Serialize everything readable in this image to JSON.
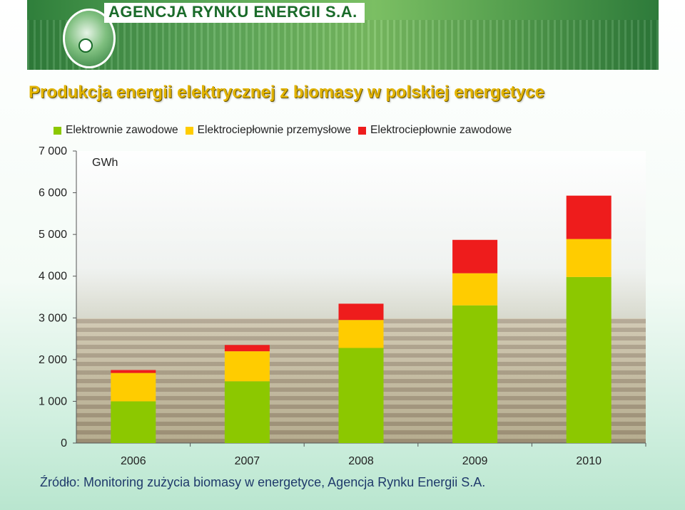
{
  "header": {
    "brand": "AGENCJA RYNKU ENERGII S.A."
  },
  "slide": {
    "title": "Produkcja energii elektrycznej z biomasy w polskiej energetyce",
    "source": "Źródło: Monitoring zużycia biomasy w energetyce, Agencja Rynku Energii S.A."
  },
  "chart_data": {
    "type": "bar",
    "stacked": true,
    "unit_label": "GWh",
    "categories": [
      "2006",
      "2007",
      "2008",
      "2009",
      "2010"
    ],
    "series": [
      {
        "name": "Elektrownie zawodowe",
        "color": "#8cc800",
        "values": [
          1000,
          1480,
          2280,
          3300,
          3980
        ]
      },
      {
        "name": "Elektrociepłownie przemysłowe",
        "color": "#ffcc00",
        "values": [
          680,
          720,
          670,
          770,
          910
        ]
      },
      {
        "name": "Elektrociepłownie zawodowe",
        "color": "#ee1c1c",
        "values": [
          70,
          150,
          390,
          800,
          1040
        ]
      }
    ],
    "ylim": [
      0,
      7000
    ],
    "yticks": [
      0,
      1000,
      2000,
      3000,
      4000,
      5000,
      6000,
      7000
    ],
    "ytick_labels": [
      "0",
      "1 000",
      "2 000",
      "3 000",
      "4 000",
      "5 000",
      "6 000",
      "7 000"
    ],
    "legend_position": "top",
    "grid": false
  }
}
